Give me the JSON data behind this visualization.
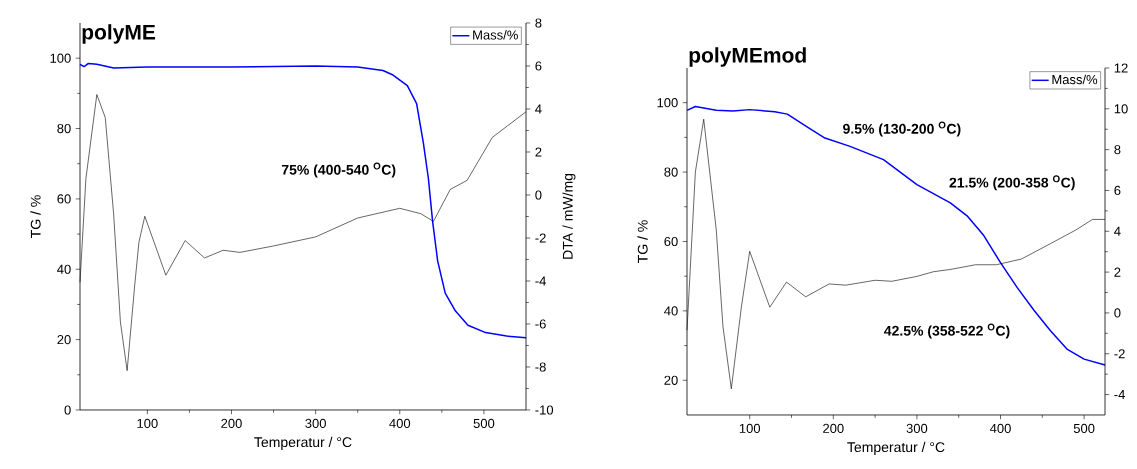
{
  "chart_data": [
    {
      "type": "line",
      "title": "polyME",
      "xlabel": "Temperatur / °C",
      "ylabel": "TG / %",
      "y2label": "DTA / mW/mg",
      "legend": "top right",
      "xlim": [
        20,
        550
      ],
      "xticks": [
        100,
        200,
        300,
        400,
        500
      ],
      "ylim": [
        0,
        110
      ],
      "yticks": [
        0,
        20,
        40,
        60,
        80,
        100
      ],
      "y2lim": [
        -10,
        8
      ],
      "y2ticks": [
        -10,
        -8,
        -6,
        -4,
        -2,
        0,
        2,
        4,
        6,
        8
      ],
      "annotations": [
        "75% (400-540 $^{O}$C)"
      ],
      "series": [
        {
          "name": "Mass/%",
          "color": "#0000ff",
          "x": [
            20,
            25,
            30,
            40,
            60,
            100,
            200,
            300,
            350,
            380,
            392,
            409,
            420,
            428,
            434,
            439,
            445,
            454,
            466,
            481,
            502,
            527,
            550
          ],
          "values": [
            98.2,
            97.6,
            98.5,
            98.3,
            97.2,
            97.5,
            97.5,
            97.8,
            97.5,
            96.5,
            95.2,
            92.2,
            87.1,
            75.9,
            65.8,
            53.6,
            42.4,
            33.2,
            28.2,
            24.1,
            22,
            21,
            20.5
          ]
        },
        {
          "color": "#000000",
          "axis": "y2",
          "x": [
            20,
            27,
            40,
            50,
            60,
            68,
            76,
            85,
            90,
            97,
            122,
            145,
            168,
            190,
            210,
            250,
            300,
            350,
            400,
            425,
            440,
            460,
            480,
            510,
            550
          ],
          "values": [
            -4.06,
            0.76,
            4.67,
            3.6,
            -0.9,
            -5.9,
            -8.17,
            -4.2,
            -2.2,
            -0.99,
            -3.73,
            -2.12,
            -2.93,
            -2.57,
            -2.67,
            -2.37,
            -1.95,
            -1.07,
            -0.62,
            -0.87,
            -1.23,
            0.26,
            0.68,
            2.68,
            3.87
          ]
        }
      ]
    },
    {
      "type": "line",
      "title": "polyMEmod",
      "xlabel": "Temperatur / °C",
      "ylabel": "TG / %",
      "legend": "top right",
      "xlim": [
        25,
        525
      ],
      "xticks": [
        100,
        200,
        300,
        400,
        500
      ],
      "ylim": [
        10,
        110
      ],
      "yticks": [
        20,
        40,
        60,
        80,
        100
      ],
      "y2lim": [
        -5,
        12
      ],
      "y2ticks": [
        -4,
        -2,
        0,
        2,
        4,
        6,
        8,
        10,
        12
      ],
      "annotations": [
        "9.5% (130-200 $^{O}$C)",
        "21.5% (200-358 $^{O}$C)",
        "42.5% (358-522 $^{O}$C)"
      ],
      "series": [
        {
          "name": "Mass/%",
          "color": "#0000ff",
          "x": [
            25,
            35,
            60,
            80,
            100,
            130,
            145,
            170,
            190,
            220,
            260,
            300,
            340,
            360,
            380,
            400,
            420,
            440,
            460,
            480,
            500,
            525
          ],
          "values": [
            97.8,
            98.9,
            97.8,
            97.6,
            98,
            97.4,
            96.7,
            92.8,
            89.8,
            87.4,
            83.6,
            76.4,
            71.1,
            67.4,
            61.7,
            53.9,
            46.7,
            40.2,
            34.2,
            28.9,
            26.1,
            24.4
          ]
        },
        {
          "color": "#000000",
          "axis": "y2",
          "x": [
            25,
            35,
            45,
            60,
            68,
            78,
            90,
            100,
            124,
            144,
            167,
            195,
            215,
            250,
            270,
            300,
            320,
            340,
            370,
            395,
            425,
            460,
            490,
            510,
            525
          ],
          "values": [
            -0.85,
            6.9,
            9.49,
            4.06,
            -0.66,
            -3.72,
            0.28,
            3.02,
            0.28,
            1.51,
            0.79,
            1.42,
            1.36,
            1.6,
            1.55,
            1.79,
            2.02,
            2.13,
            2.36,
            2.36,
            2.64,
            3.4,
            4.06,
            4.58,
            4.58
          ]
        }
      ]
    }
  ]
}
